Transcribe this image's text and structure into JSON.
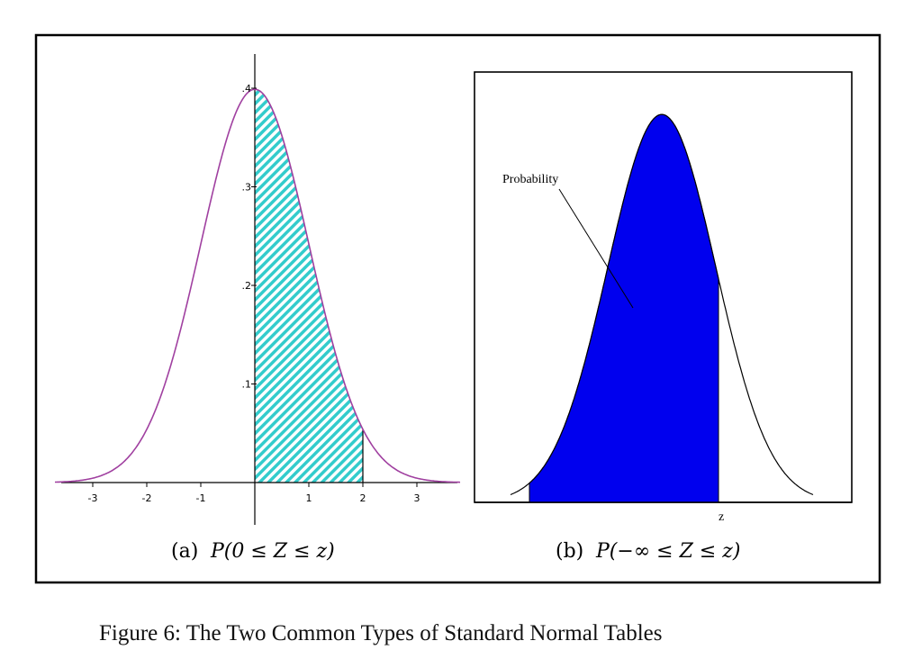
{
  "figure_title": "Figure 6: The Two Common Types of Standard Normal Tables",
  "colors": {
    "curve_a": "#a040a0",
    "hatch_a": "#33cccc",
    "fill_b": "#0000ee",
    "line": "#000000"
  },
  "chart_data": [
    {
      "id": "a",
      "type": "area",
      "function": "standard normal density",
      "x_range": [
        -3.7,
        3.8
      ],
      "y_range": [
        0,
        0.42
      ],
      "shaded_interval": [
        0,
        2
      ],
      "x_ticks": [
        -3,
        -2,
        -1,
        1,
        2,
        3
      ],
      "x_tick_labels": [
        "-3",
        "-2",
        "-1",
        "1",
        "2",
        "3"
      ],
      "y_ticks": [
        0.1,
        0.2,
        0.3,
        0.4
      ],
      "y_tick_labels": [
        ".1",
        ".2",
        ".3",
        ".4"
      ],
      "caption_prefix": "(a)",
      "caption": "P(0 ≤ Z ≤ z)"
    },
    {
      "id": "b",
      "type": "area",
      "function": "standard normal density",
      "x_range": [
        -2.8,
        2.8
      ],
      "shaded_interval": [
        -2.45,
        1.05
      ],
      "z_label": "z",
      "annotation": "Probability",
      "caption_prefix": "(b)",
      "caption": "P(−∞ ≤ Z ≤ z)"
    }
  ]
}
